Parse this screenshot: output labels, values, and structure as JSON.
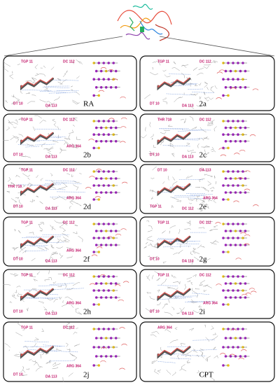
{
  "panels": [
    {
      "label": "RA",
      "residues": [
        "TGP 11",
        "DC 112",
        "DT 10",
        "DA 113"
      ]
    },
    {
      "label": "2a",
      "residues": [
        "TGP 11",
        "DC 112",
        "DT 10",
        "DA 113"
      ]
    },
    {
      "label": "2b",
      "residues": [
        "TGP 11",
        "DC 112",
        "DT 10",
        "DA 113",
        "ARG 364"
      ]
    },
    {
      "label": "2c",
      "residues": [
        "THR 718",
        "DC 112",
        "DT 10",
        "DA 113"
      ]
    },
    {
      "label": "2d",
      "residues": [
        "TGP 11",
        "DC 112",
        "DT 10",
        "DA 113",
        "ARG 364",
        "THR 718"
      ]
    },
    {
      "label": "2e",
      "residues": [
        "DT 10",
        "DA 113",
        "TGP 11",
        "DC 112",
        "ARG 364"
      ]
    },
    {
      "label": "2f",
      "residues": [
        "TGP 11",
        "DC 112",
        "DT 10",
        "DA 113",
        "ARG 364"
      ]
    },
    {
      "label": "2g",
      "residues": [
        "TGP 11",
        "DC 112",
        "DT 10",
        "DA 113"
      ]
    },
    {
      "label": "2h",
      "residues": [
        "TGP 11",
        "DC 112",
        "DT 10",
        "DA 113",
        "ARG 364"
      ]
    },
    {
      "label": "2i",
      "residues": [
        "TGP 11",
        "DC 112",
        "DT 10",
        "DA 113",
        "ARG 364"
      ]
    },
    {
      "label": "2j",
      "residues": [
        "TGP 11",
        "DC 112",
        "DT 10",
        "DA 113",
        "ARG 364"
      ]
    },
    {
      "label": "CPT",
      "residues": [
        "ARG 364"
      ]
    }
  ]
}
